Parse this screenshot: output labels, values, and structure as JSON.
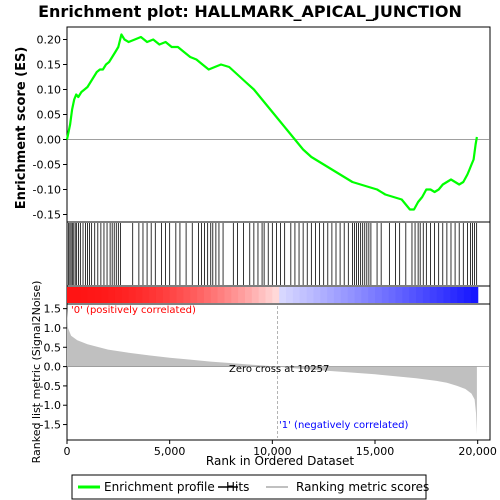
{
  "chart_data": {
    "type": "line",
    "title": "Enrichment plot: HALLMARK_APICAL_JUNCTION",
    "es_panel": {
      "ylabel": "Enrichment score (ES)",
      "ylim": [
        -0.165,
        0.225
      ],
      "yticks": [
        "0.20",
        "0.15",
        "0.10",
        "0.05",
        "0.00",
        "-0.05",
        "-0.10",
        "-0.15"
      ],
      "ytick_values": [
        0.2,
        0.15,
        0.1,
        0.05,
        0.0,
        -0.05,
        -0.1,
        -0.15
      ],
      "line_color": "#00ff00",
      "es_curve": {
        "x": [
          0,
          150,
          250,
          350,
          450,
          550,
          700,
          850,
          1000,
          1150,
          1300,
          1450,
          1600,
          1750,
          1900,
          2050,
          2200,
          2350,
          2500,
          2650,
          2800,
          3000,
          3300,
          3600,
          3900,
          4200,
          4500,
          4800,
          5100,
          5400,
          5700,
          6000,
          6300,
          6600,
          6900,
          7200,
          7500,
          7900,
          8300,
          8700,
          9100,
          9500,
          9900,
          10300,
          10700,
          11100,
          11500,
          11900,
          12300,
          12700,
          13100,
          13500,
          13900,
          14300,
          14700,
          15100,
          15500,
          15900,
          16300,
          16700,
          16900,
          17100,
          17300,
          17500,
          17700,
          17900,
          18100,
          18300,
          18500,
          18700,
          18900,
          19100,
          19300,
          19500,
          19600,
          19700,
          19800,
          19900,
          19960
        ],
        "y": [
          0.0,
          0.03,
          0.06,
          0.08,
          0.09,
          0.085,
          0.095,
          0.1,
          0.105,
          0.115,
          0.125,
          0.135,
          0.14,
          0.14,
          0.15,
          0.155,
          0.165,
          0.175,
          0.185,
          0.21,
          0.2,
          0.195,
          0.2,
          0.205,
          0.195,
          0.2,
          0.19,
          0.195,
          0.185,
          0.185,
          0.175,
          0.165,
          0.16,
          0.15,
          0.14,
          0.145,
          0.15,
          0.145,
          0.13,
          0.115,
          0.1,
          0.08,
          0.06,
          0.04,
          0.02,
          0.0,
          -0.02,
          -0.035,
          -0.045,
          -0.055,
          -0.065,
          -0.075,
          -0.085,
          -0.09,
          -0.095,
          -0.1,
          -0.11,
          -0.115,
          -0.12,
          -0.14,
          -0.14,
          -0.125,
          -0.115,
          -0.1,
          -0.1,
          -0.105,
          -0.1,
          -0.09,
          -0.085,
          -0.08,
          -0.085,
          -0.09,
          -0.085,
          -0.07,
          -0.06,
          -0.05,
          -0.04,
          -0.01,
          0.005
        ]
      },
      "hits": [
        80,
        140,
        200,
        260,
        330,
        400,
        470,
        560,
        650,
        780,
        900,
        1000,
        1100,
        1200,
        1350,
        1500,
        1650,
        1800,
        1950,
        2100,
        2200,
        2300,
        2400,
        2500,
        2600,
        3200,
        3500,
        3700,
        3900,
        4100,
        4300,
        4600,
        4800,
        5000,
        5300,
        5500,
        5800,
        6100,
        6400,
        6550,
        6700,
        6850,
        7000,
        7100,
        7250,
        7400,
        7600,
        8100,
        8300,
        8600,
        8900,
        9100,
        9300,
        9500,
        9600,
        9800,
        10000,
        10200,
        10400,
        10600,
        10900,
        11100,
        11300,
        11500,
        11700,
        11900,
        12100,
        12300,
        12500,
        12700,
        12900,
        13100,
        13300,
        13500,
        13700,
        13900,
        14000,
        14100,
        14200,
        14300,
        14400,
        14500,
        14600,
        14700,
        14800,
        15100,
        15300,
        15700,
        16000,
        16200,
        16500,
        16800,
        16950,
        17100,
        17200,
        17350,
        17500,
        17700,
        17900,
        18100,
        18300,
        18500,
        18700,
        18900,
        19100,
        19300,
        19500,
        19650,
        19750,
        19850,
        19950
      ]
    },
    "rank_panel": {
      "ylabel": "Ranked list metric (Signal2Noise)",
      "ylim": [
        -1.9,
        1.62
      ],
      "yticks": [
        "1.5",
        "1.0",
        "0.5",
        "0.0",
        "-0.5",
        "-1.0",
        "-1.5"
      ],
      "ytick_values": [
        1.5,
        1.0,
        0.5,
        0.0,
        -0.5,
        -1.0,
        -1.5
      ],
      "fill_color": "#c0c0c0",
      "metric_curve": {
        "x": [
          0,
          50,
          200,
          500,
          1000,
          2000,
          3000,
          4000,
          5000,
          6000,
          7000,
          8000,
          9000,
          10257,
          11000,
          12000,
          13000,
          14000,
          15000,
          16000,
          17000,
          18000,
          18500,
          19000,
          19400,
          19700,
          19850,
          19920,
          19960
        ],
        "y": [
          1.5,
          1.0,
          0.8,
          0.68,
          0.58,
          0.44,
          0.36,
          0.29,
          0.23,
          0.18,
          0.13,
          0.09,
          0.05,
          0.0,
          -0.04,
          -0.08,
          -0.12,
          -0.16,
          -0.2,
          -0.25,
          -0.3,
          -0.37,
          -0.42,
          -0.5,
          -0.58,
          -0.7,
          -0.85,
          -1.2,
          -1.75
        ]
      },
      "pos_label": "'0' (positively correlated)",
      "neg_label": "'1' (negatively correlated)",
      "zero_cross_label": "Zero cross at 10257",
      "zero_cross": 10257,
      "pos_color": "#ff0000",
      "neg_color": "#0000ff"
    },
    "xlabel": "Rank in Ordered Dataset",
    "xlim": [
      0,
      20600
    ],
    "xticks": [
      "0",
      "5,000",
      "10,000",
      "15,000",
      "20,000"
    ],
    "xtick_values": [
      0,
      5000,
      10000,
      15000,
      20000
    ],
    "legend": {
      "items": [
        "Enrichment profile",
        "Hits",
        "Ranking metric scores"
      ],
      "placement": "bottom"
    }
  }
}
